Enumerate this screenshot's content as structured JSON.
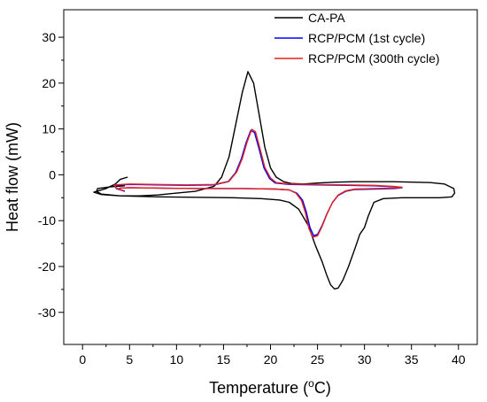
{
  "chart_data": {
    "type": "line",
    "title": "",
    "xlabel": "Temperature (",
    "xlabel_unit": "o",
    "xlabel_suffix": "C)",
    "ylabel": "Heat flow (mW)",
    "xlim": [
      -2,
      42
    ],
    "ylim": [
      -37,
      36
    ],
    "xticks": [
      0,
      5,
      10,
      15,
      20,
      25,
      30,
      35,
      40
    ],
    "yticks": [
      -30,
      -20,
      -10,
      0,
      10,
      20,
      30
    ],
    "grid": false,
    "legend_position": "top-right",
    "series": [
      {
        "name": "CA-PA",
        "color": "#000000",
        "x": [
          4.8,
          4.0,
          3.5,
          2.5,
          1.5,
          1.2,
          2.0,
          4.0,
          6.0,
          8.0,
          10.0,
          12.0,
          14.0,
          14.8,
          15.6,
          16.4,
          17.0,
          17.6,
          18.2,
          18.8,
          19.4,
          20.0,
          20.6,
          21.4,
          22.2,
          23.5,
          25.0,
          27.0,
          29.0,
          31.0,
          33.0,
          35.0,
          37.0,
          38.5,
          39.5,
          39.6,
          39.3,
          38.0,
          36.0,
          34.0,
          32.0,
          31.0,
          30.4,
          30.0,
          29.5,
          29.0,
          28.3,
          27.7,
          27.2,
          26.8,
          26.4,
          26.0,
          25.5,
          24.8,
          24.0,
          23.0,
          22.0,
          21.0,
          19.0,
          16.0,
          12.0,
          8.0,
          4.0,
          2.0,
          1.5,
          1.6,
          3.0,
          4.5
        ],
        "y": [
          -0.5,
          -1.0,
          -2.0,
          -3.0,
          -3.6,
          -3.8,
          -4.3,
          -4.6,
          -4.6,
          -4.4,
          -4.0,
          -3.6,
          -2.5,
          -0.5,
          4.0,
          12.0,
          18.0,
          22.5,
          20.0,
          13.0,
          6.0,
          1.5,
          -0.5,
          -1.5,
          -1.9,
          -2.0,
          -1.8,
          -1.6,
          -1.5,
          -1.5,
          -1.5,
          -1.6,
          -1.7,
          -2.0,
          -3.0,
          -4.0,
          -4.8,
          -5.0,
          -5.0,
          -5.0,
          -5.2,
          -6.0,
          -9.0,
          -11.5,
          -13.0,
          -16.0,
          -20.0,
          -23.0,
          -24.7,
          -24.9,
          -24.0,
          -22.0,
          -19.0,
          -15.5,
          -11.0,
          -7.5,
          -6.0,
          -5.5,
          -5.2,
          -5.0,
          -4.9,
          -4.8,
          -4.6,
          -4.2,
          -3.6,
          -3.0,
          -2.6,
          -2.4
        ]
      },
      {
        "name": "RCP/PCM (1st cycle)",
        "color": "#0000ff",
        "x": [
          4.5,
          3.6,
          3.4,
          5.0,
          8.0,
          11.0,
          14.0,
          15.5,
          16.3,
          16.9,
          17.4,
          17.9,
          18.3,
          18.8,
          19.3,
          19.9,
          20.5,
          22.0,
          25.0,
          28.0,
          31.0,
          33.0,
          34.0,
          33.2,
          31.0,
          29.0,
          28.0,
          27.2,
          26.6,
          26.0,
          25.5,
          25.0,
          24.6,
          24.2,
          23.8,
          23.4,
          22.8,
          22.0,
          20.5,
          17.0,
          12.0,
          8.0,
          5.0,
          4.0,
          3.7
        ],
        "y": [
          -3.6,
          -3.0,
          -2.3,
          -2.1,
          -2.2,
          -2.3,
          -2.2,
          -1.5,
          0.5,
          3.5,
          7.0,
          9.7,
          9.2,
          5.5,
          1.5,
          -0.8,
          -1.8,
          -2.1,
          -2.2,
          -2.3,
          -2.4,
          -2.6,
          -2.8,
          -3.0,
          -3.1,
          -3.2,
          -3.6,
          -4.5,
          -6.0,
          -8.5,
          -11.0,
          -13.0,
          -13.3,
          -11.5,
          -8.0,
          -5.5,
          -4.0,
          -3.3,
          -3.1,
          -3.0,
          -3.0,
          -2.9,
          -2.8,
          -2.9,
          -3.2
        ]
      },
      {
        "name": "RCP/PCM (300th cycle)",
        "color": "#e8221b",
        "x": [
          4.4,
          3.6,
          3.4,
          5.0,
          8.0,
          11.0,
          14.0,
          15.6,
          16.4,
          17.0,
          17.5,
          18.0,
          18.4,
          18.9,
          19.4,
          20.0,
          20.6,
          22.0,
          25.0,
          28.0,
          31.0,
          33.0,
          34.0,
          33.2,
          31.0,
          29.0,
          28.0,
          27.2,
          26.6,
          26.0,
          25.5,
          25.0,
          24.5,
          24.1,
          23.7,
          23.3,
          22.7,
          22.0,
          20.5,
          17.0,
          12.0,
          8.0,
          5.0,
          4.0,
          3.7
        ],
        "y": [
          -3.5,
          -2.9,
          -2.2,
          -2.0,
          -2.1,
          -2.2,
          -2.1,
          -1.4,
          0.6,
          3.6,
          7.1,
          9.9,
          9.4,
          5.6,
          1.6,
          -0.7,
          -1.7,
          -2.0,
          -2.1,
          -2.2,
          -2.3,
          -2.5,
          -2.7,
          -2.9,
          -3.0,
          -3.1,
          -3.5,
          -4.4,
          -6.0,
          -8.6,
          -11.2,
          -13.3,
          -13.6,
          -11.8,
          -8.2,
          -5.6,
          -4.0,
          -3.3,
          -3.1,
          -3.0,
          -3.0,
          -2.9,
          -2.8,
          -2.9,
          -3.1
        ]
      }
    ]
  }
}
